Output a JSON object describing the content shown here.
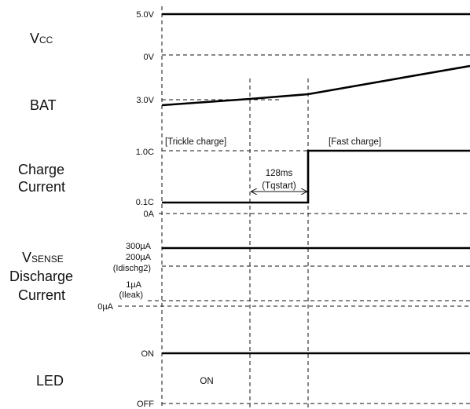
{
  "signals": {
    "vcc": {
      "main": "V",
      "sub": "CC"
    },
    "bat": {
      "label": "BAT"
    },
    "charge": {
      "line1": "Charge",
      "line2": "Current"
    },
    "vsense": {
      "main": "V",
      "sub": "SENSE",
      "line2": "Discharge",
      "line3": "Current"
    },
    "led": {
      "label": "LED"
    }
  },
  "levels": {
    "vcc_high": "5.0V",
    "vcc_low": "0V",
    "bat_start": "3.0V",
    "charge_fast": "1.0C",
    "charge_trickle": "0.1C",
    "charge_zero": "0A",
    "sense_300": "300µA",
    "sense_200": "200µA",
    "sense_200_note": "(Idischg2)",
    "sense_1": "1µA",
    "sense_1_note": "(Ileak)",
    "sense_zero": "0µA",
    "led_on": "ON",
    "led_off": "OFF"
  },
  "annotations": {
    "trickle": "[Trickle charge]",
    "fast": "[Fast charge]",
    "delay_value": "128ms",
    "delay_name": "(Tqstart)",
    "led_state": "ON"
  }
}
